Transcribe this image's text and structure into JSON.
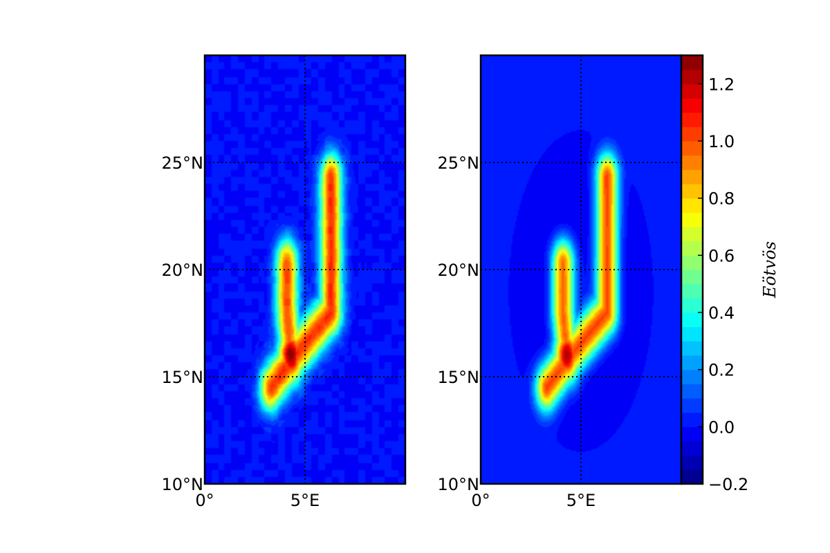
{
  "chart_data": [
    {
      "type": "heatmap",
      "panel": "left",
      "xlabel": "",
      "ylabel": "",
      "xlim": [
        0,
        10
      ],
      "ylim": [
        10,
        30
      ],
      "x_ticks": [
        {
          "value": 0,
          "label": "0°"
        },
        {
          "value": 5,
          "label": "5°E"
        }
      ],
      "y_ticks": [
        {
          "value": 10,
          "label": "10°N"
        },
        {
          "value": 15,
          "label": "15°N"
        },
        {
          "value": 20,
          "label": "20°N"
        },
        {
          "value": 25,
          "label": "25°N"
        }
      ],
      "grid": true,
      "background_value": 0.0,
      "noisy": true,
      "features": [
        {
          "name": "",
          "shape": "ridge",
          "path": [
            [
              3.3,
              14.5
            ],
            [
              4.5,
              16.0
            ],
            [
              6.3,
              18.0
            ],
            [
              6.3,
              24.3
            ]
          ],
          "peak": 1.05
        },
        {
          "name": "",
          "shape": "ridge",
          "path": [
            [
              4.3,
              16.0
            ],
            [
              4.1,
              18.0
            ],
            [
              4.1,
              20.3
            ]
          ],
          "peak": 1.0
        },
        {
          "name": "",
          "shape": "peak",
          "center": [
            4.3,
            16.0
          ],
          "peak": 1.3
        }
      ]
    },
    {
      "type": "heatmap",
      "panel": "right",
      "xlabel": "",
      "ylabel": "",
      "xlim": [
        0,
        10
      ],
      "ylim": [
        10,
        30
      ],
      "x_ticks": [
        {
          "value": 0,
          "label": "0°"
        },
        {
          "value": 5,
          "label": "5°E"
        }
      ],
      "y_ticks": [
        {
          "value": 10,
          "label": "10°N"
        },
        {
          "value": 15,
          "label": "15°N"
        },
        {
          "value": 20,
          "label": "20°N"
        },
        {
          "value": 25,
          "label": "25°N"
        }
      ],
      "grid": true,
      "background_value": 0.0,
      "noisy": false,
      "features": [
        {
          "name": "",
          "shape": "ridge",
          "path": [
            [
              3.3,
              14.5
            ],
            [
              4.5,
              16.0
            ],
            [
              6.3,
              18.0
            ],
            [
              6.3,
              24.3
            ]
          ],
          "peak": 1.05
        },
        {
          "name": "",
          "shape": "ridge",
          "path": [
            [
              4.3,
              16.0
            ],
            [
              4.1,
              18.0
            ],
            [
              4.1,
              20.3
            ]
          ],
          "peak": 1.0
        },
        {
          "name": "",
          "shape": "peak",
          "center": [
            4.3,
            16.0
          ],
          "peak": 1.3
        },
        {
          "name": "",
          "shape": "trough-halo",
          "center": [
            5.0,
            19.0
          ],
          "value": -0.05
        }
      ]
    }
  ],
  "colorbar": {
    "label": "Eötvös",
    "vmin": -0.2,
    "vmax": 1.3,
    "levels": 30,
    "tick_labels": [
      "−0.2",
      "0.0",
      "0.2",
      "0.4",
      "0.6",
      "0.8",
      "1.0",
      "1.2"
    ],
    "tick_values": [
      -0.2,
      0.0,
      0.2,
      0.4,
      0.6,
      0.8,
      1.0,
      1.2
    ],
    "colormap": "jet"
  }
}
